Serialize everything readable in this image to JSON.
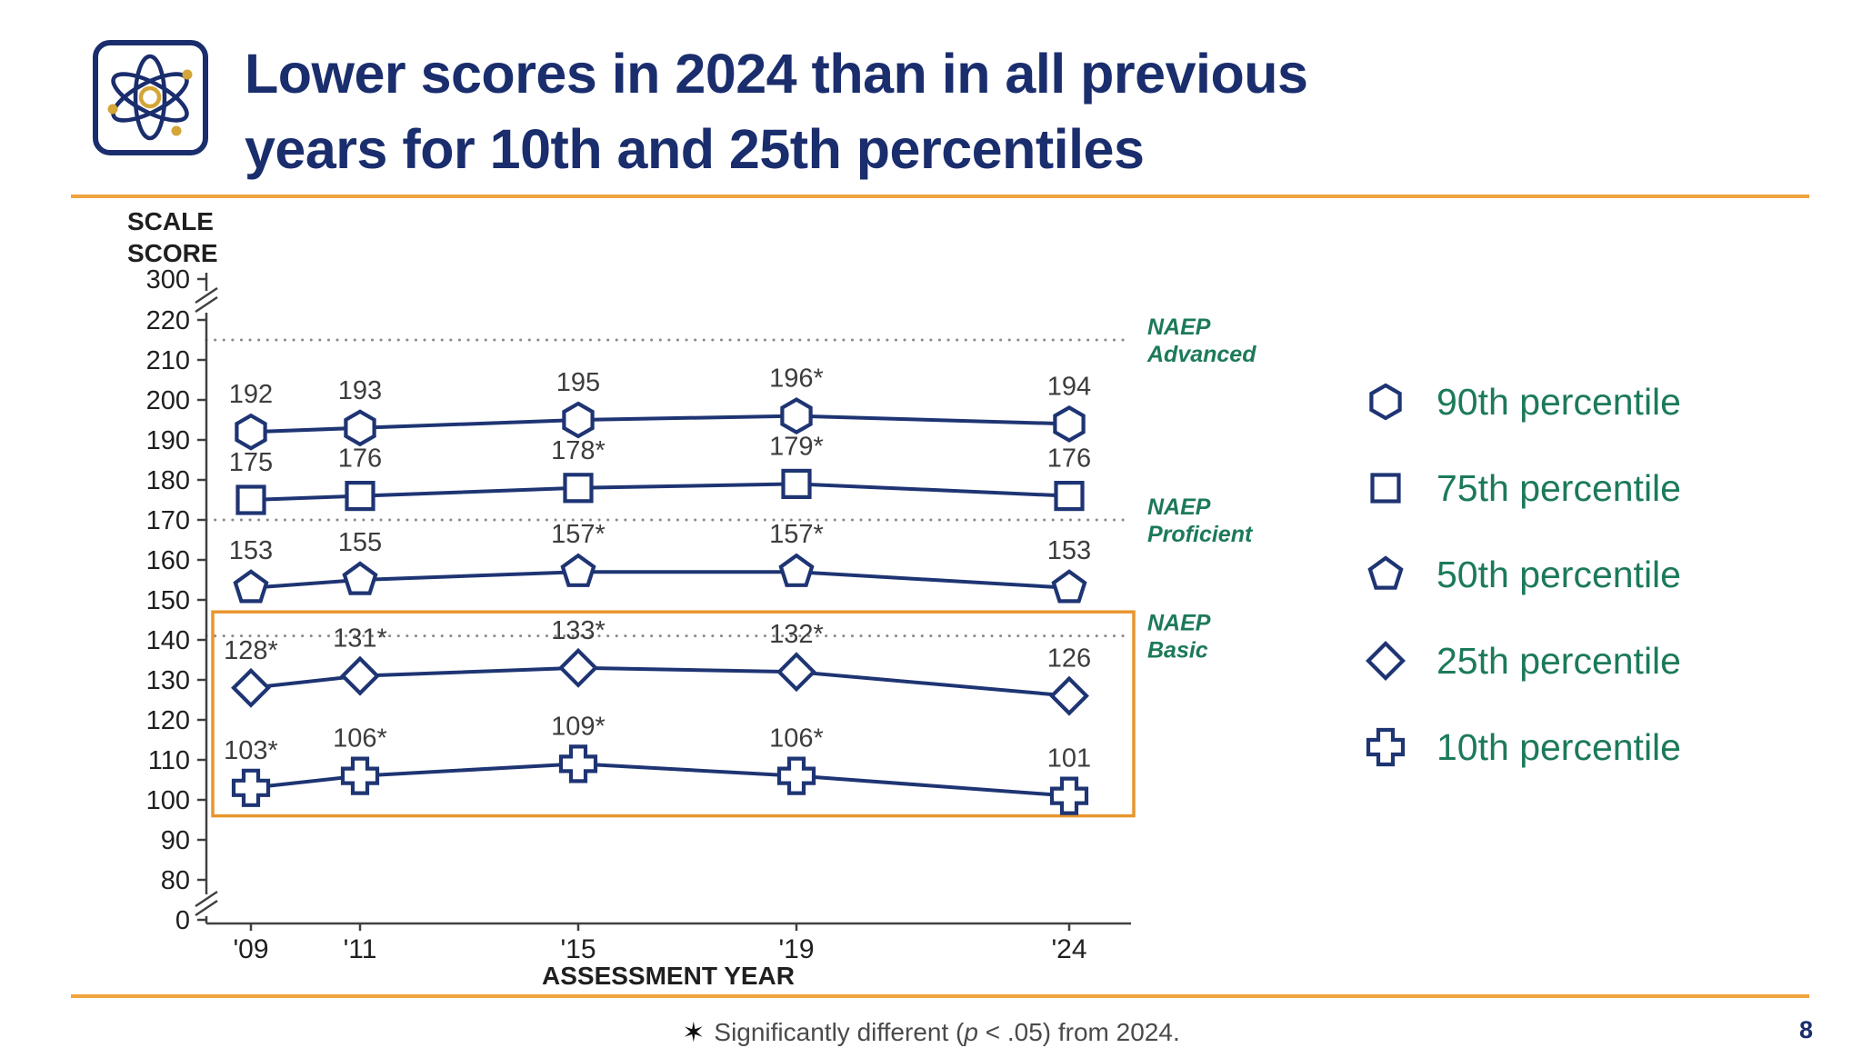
{
  "slide": {
    "title_lines": [
      "Lower scores in 2024 than in all previous",
      "years for 10th and 25th percentiles"
    ],
    "page_number": "8",
    "footnote": {
      "star": "✶",
      "text_prefix": "Significantly different (",
      "italic": "p",
      "text_suffix": " < .05) from 2024."
    }
  },
  "chart_data": {
    "type": "line",
    "title": "",
    "ylabel": "SCALE SCORE",
    "xlabel": "ASSESSMENT YEAR",
    "x_years": [
      2009,
      2011,
      2015,
      2019,
      2024
    ],
    "x_tick_labels": [
      "'09",
      "'11",
      "'15",
      "'19",
      "'24"
    ],
    "y_ticks": [
      300,
      220,
      210,
      200,
      190,
      180,
      170,
      160,
      150,
      140,
      130,
      120,
      110,
      100,
      90,
      80,
      0
    ],
    "y_axis_break": true,
    "grid": "none",
    "legend_position": "right",
    "series": [
      {
        "name": "90th percentile",
        "marker": "hexagon",
        "values": [
          192,
          193,
          195,
          196,
          194
        ],
        "labels": [
          "192",
          "193",
          "195",
          "196*",
          "194"
        ]
      },
      {
        "name": "75th percentile",
        "marker": "square",
        "values": [
          175,
          176,
          178,
          179,
          176
        ],
        "labels": [
          "175",
          "176",
          "178*",
          "179*",
          "176"
        ]
      },
      {
        "name": "50th percentile",
        "marker": "pentagon",
        "values": [
          153,
          155,
          157,
          157,
          153
        ],
        "labels": [
          "153",
          "155",
          "157*",
          "157*",
          "153"
        ]
      },
      {
        "name": "25th percentile",
        "marker": "diamond",
        "values": [
          128,
          131,
          133,
          132,
          126
        ],
        "labels": [
          "128*",
          "131*",
          "133*",
          "132*",
          "126"
        ]
      },
      {
        "name": "10th percentile",
        "marker": "cross",
        "values": [
          103,
          106,
          109,
          106,
          101
        ],
        "labels": [
          "103*",
          "106*",
          "109*",
          "106*",
          "101"
        ]
      }
    ],
    "reference_lines": [
      {
        "label": "NAEP Advanced",
        "value": 215
      },
      {
        "label": "NAEP Proficient",
        "value": 170
      },
      {
        "label": "NAEP Basic",
        "value": 141
      }
    ],
    "highlight_box": {
      "y_top": 147,
      "y_bottom": 96
    }
  },
  "colors": {
    "navy": "#1a2d6d",
    "line": "#1e3473",
    "data_label": "#3d3d3d",
    "reference_line": "#8a8a8a",
    "green": "#1c7a58",
    "orange": "#f0a43e",
    "highlight": "#e8962e",
    "axis": "#404040",
    "tick_label": "#1f1f1f",
    "gold": "#d4a537"
  }
}
